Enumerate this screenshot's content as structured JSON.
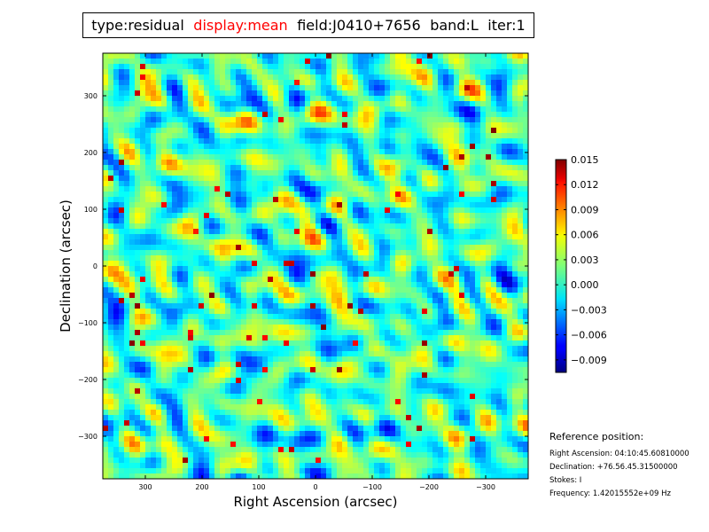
{
  "title_bar": {
    "type": "type:residual",
    "display": "display:mean",
    "field": "field:J0410+7656",
    "band": "band:L",
    "iter": "iter:1",
    "highlight_color": "#ff0000"
  },
  "chart_data": {
    "type": "heatmap",
    "title": "",
    "xlabel": "Right Ascension (arcsec)",
    "ylabel": "Declination (arcsec)",
    "xlim": [
      375,
      -375
    ],
    "ylim": [
      -375,
      375
    ],
    "x_ticks": [
      300,
      200,
      100,
      0,
      -100,
      -200,
      -300
    ],
    "x_tick_labels": [
      "300",
      "200",
      "100",
      "0",
      "−100",
      "−200",
      "−300"
    ],
    "y_ticks": [
      300,
      200,
      100,
      0,
      -100,
      -200,
      -300
    ],
    "y_tick_labels": [
      "300",
      "200",
      "100",
      "0",
      "−100",
      "−200",
      "−300"
    ],
    "colormap": "jet",
    "colorbar": {
      "min": -0.0105,
      "max": 0.015,
      "ticks": [
        0.015,
        0.012,
        0.009,
        0.006,
        0.003,
        0.0,
        -0.003,
        -0.006,
        -0.009
      ],
      "tick_labels": [
        "0.015",
        "0.012",
        "0.009",
        "0.006",
        "0.003",
        "0.000",
        "−0.003",
        "−0.006",
        "−0.009"
      ]
    }
  },
  "reference": {
    "header": "Reference position:",
    "ra": "Right Ascension: 04:10:45.60810000",
    "dec": "Declination: +76.56.45.31500000",
    "stokes": "Stokes: I",
    "frequency": "Frequency: 1.42015552e+09 Hz"
  }
}
